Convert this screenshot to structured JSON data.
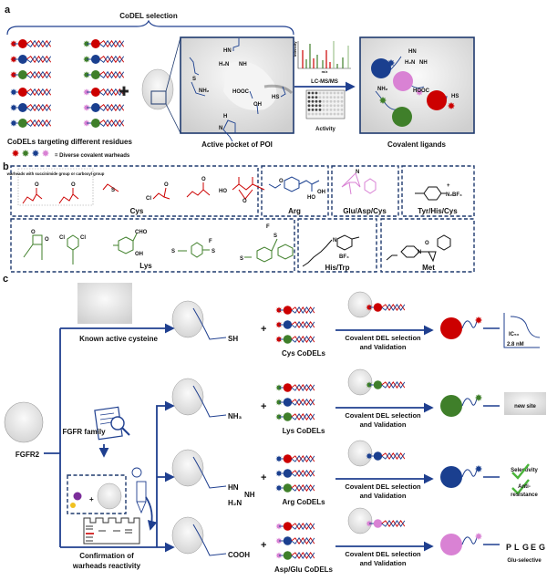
{
  "colors": {
    "cys": "#cc0000",
    "lys": "#3f7f2a",
    "arg": "#1a3f8f",
    "glu": "#d982d4",
    "navy": "#1f3f8f",
    "surface": "#e8e8e8"
  },
  "panel_a": {
    "label": "a",
    "title": "CoDEL selection",
    "library_caption": "CoDELs targeting different residues",
    "warhead_legend": "= Diverse covalent warheads",
    "pocket_caption": "Active pocket of POI",
    "pocket_groups": {
      "guan_nh": "HN",
      "guan_h2n": "H₂N",
      "guan_nh2": "NH",
      "sme": "S",
      "nh2": "NH₂",
      "hooc": "HOOC",
      "sh": "HS",
      "oh": "OH",
      "imid_h": "H",
      "imid_n": "N"
    },
    "spectrum_y": "Intensity",
    "spectrum_x": "m/z",
    "method": "LC-MS/MS",
    "activity": "Activity",
    "result_caption": "Covalent ligands",
    "result_groups": {
      "hn": "HN",
      "h2n": "H₂N",
      "nh": "NH",
      "nh2": "NH₂",
      "hooc": "HOOC",
      "hs": "HS"
    }
  },
  "panel_b": {
    "label": "b",
    "note": "warheads with succinimide group or carboxyl group",
    "boxes": [
      {
        "residue": "Cys"
      },
      {
        "residue": "Arg"
      },
      {
        "residue": "Glu/Asp/Cys"
      },
      {
        "residue": "Tyr/His/Cys"
      },
      {
        "residue": "Lys"
      },
      {
        "residue": "His/Trp"
      },
      {
        "residue": "Met"
      }
    ],
    "atoms": {
      "o": "O",
      "s": "S",
      "cl": "Cl",
      "ho": "HO",
      "oh": "OH",
      "n": "N",
      "n2bf4": "N₂BF₄",
      "plus": "+",
      "minus": "−",
      "cho": "CHO",
      "f": "F",
      "bf4": "BF₄"
    }
  },
  "panel_c": {
    "label": "c",
    "target": "FGFR2",
    "known_cys": "Known active cysteine",
    "family": "FGFR family",
    "confirmation": [
      "Confirmation of",
      "warheads reactivity"
    ],
    "rows": [
      {
        "group": "SH",
        "library": "Cys CoDELs",
        "step": [
          "Covalent DEL selection",
          "and Validation"
        ],
        "warhead": "cys",
        "bb": [
          "cys",
          "arg",
          "lys"
        ]
      },
      {
        "group": "NH₃",
        "library": "Lys CoDELs",
        "step": [
          "Covalent DEL selection",
          "and Validation"
        ],
        "warhead": "lys",
        "bb": [
          "cys",
          "arg",
          "lys"
        ]
      },
      {
        "group": "HN",
        "library": "Arg CoDELs",
        "step": [
          "Covalent DEL selection",
          "and Validation"
        ],
        "warhead": "arg",
        "bb": [
          "cys",
          "arg",
          "lys"
        ]
      },
      {
        "group": "COOH",
        "library": "Asp/Glu CoDELs",
        "step": [
          "Covalent DEL selection",
          "and Validation"
        ],
        "warhead": "glu",
        "bb": [
          "cys",
          "arg",
          "lys"
        ]
      }
    ],
    "arg_extra": {
      "nh": "NH",
      "h2n": "H₂N"
    },
    "plus": "+",
    "ic50_label": "IC₅₀",
    "ic50_value": "2.8 nM",
    "new_site": "new site",
    "selectivity": "Selectivity",
    "anti": [
      "Anti-",
      "resistance"
    ],
    "sequence": [
      {
        "c": "P",
        "color": "#1a3f8f"
      },
      {
        "c": "L",
        "color": "#1a3f8f"
      },
      {
        "c": "G",
        "color": "#1a3f8f"
      },
      {
        "c": "E",
        "color": "#cc0000"
      },
      {
        "c": "G",
        "color": "#1a3f8f"
      }
    ],
    "glu_selective": "Glu-selective"
  }
}
